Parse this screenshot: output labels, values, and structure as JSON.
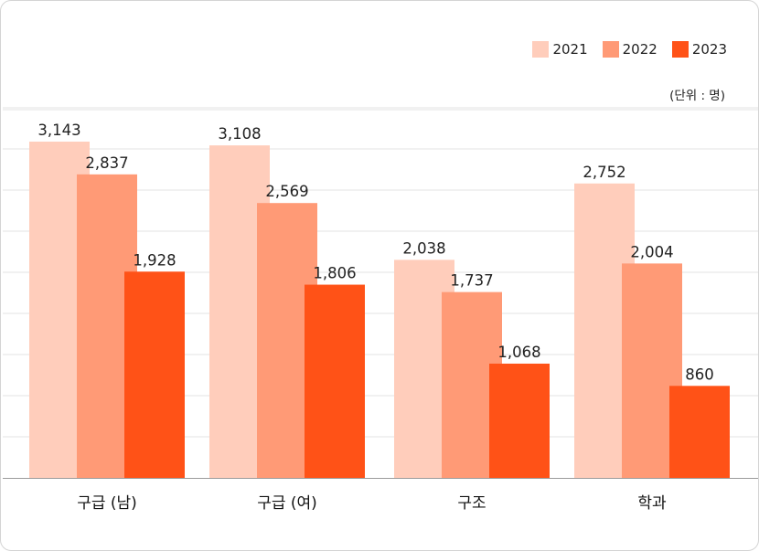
{
  "chart_data": {
    "type": "bar",
    "categories": [
      "구급 (남)",
      "구급 (여)",
      "구조",
      "학과"
    ],
    "series": [
      {
        "name": "2021",
        "color": "#FFCDBB",
        "values": [
          3143,
          3108,
          2038,
          2752
        ]
      },
      {
        "name": "2022",
        "color": "#FF9A76",
        "values": [
          2837,
          2569,
          1737,
          2004
        ]
      },
      {
        "name": "2023",
        "color": "#FF5217",
        "values": [
          1928,
          1806,
          1068,
          860
        ]
      }
    ],
    "value_labels": [
      [
        "3,143",
        "3,108",
        "2,038",
        "2,752"
      ],
      [
        "2,837",
        "2,569",
        "1,737",
        "2,004"
      ],
      [
        "1,928",
        "1,806",
        "1,068",
        "860"
      ]
    ],
    "unit_label": "(단위 : 명)",
    "ylim": [
      0,
      3400
    ],
    "grid": true,
    "legend_position": "top-right"
  }
}
